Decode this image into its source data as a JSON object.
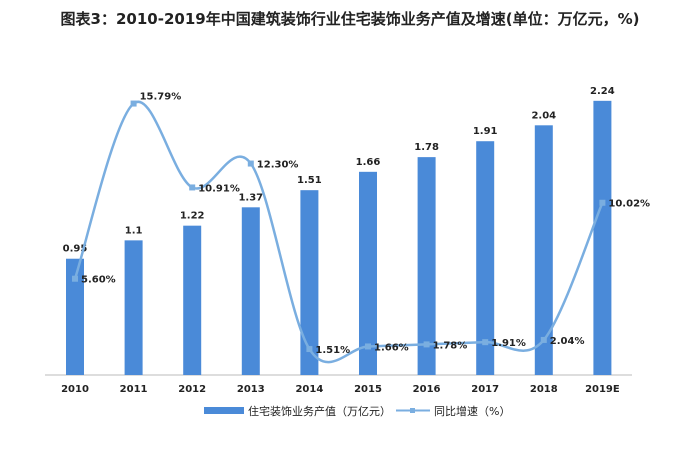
{
  "chart_data": {
    "type": "bar+line",
    "title": "图表3：2010-2019年中国建筑装饰行业住宅装饰业务产值及增速(单位：万亿元，%)",
    "categories": [
      "2010",
      "2011",
      "2012",
      "2013",
      "2014",
      "2015",
      "2016",
      "2017",
      "2018",
      "2019E"
    ],
    "series": [
      {
        "name": "住宅装饰业务产值（万亿元）",
        "type": "bar",
        "axis": "left",
        "color": "#4a8ad8",
        "values": [
          0.95,
          1.1,
          1.22,
          1.37,
          1.51,
          1.66,
          1.78,
          1.91,
          2.04,
          2.24
        ],
        "labels": [
          "0.95",
          "1.1",
          "1.22",
          "1.37",
          "1.51",
          "1.66",
          "1.78",
          "1.91",
          "2.04",
          "2.24"
        ]
      },
      {
        "name": "同比增速（%）",
        "type": "line",
        "smooth": true,
        "axis": "right",
        "color": "#7aaee0",
        "values": [
          5.6,
          15.79,
          10.91,
          12.3,
          1.51,
          1.66,
          1.78,
          1.91,
          2.04,
          10.02
        ],
        "labels": [
          "5.60%",
          "15.79%",
          "10.91%",
          "12.30%",
          "1.51%",
          "1.66%",
          "1.78%",
          "1.91%",
          "2.04%",
          "10.02%"
        ]
      }
    ],
    "ylim": [
      0,
      2.5
    ],
    "ylim2": [
      0,
      17.8
    ],
    "grid": false,
    "legend": "bottom"
  }
}
